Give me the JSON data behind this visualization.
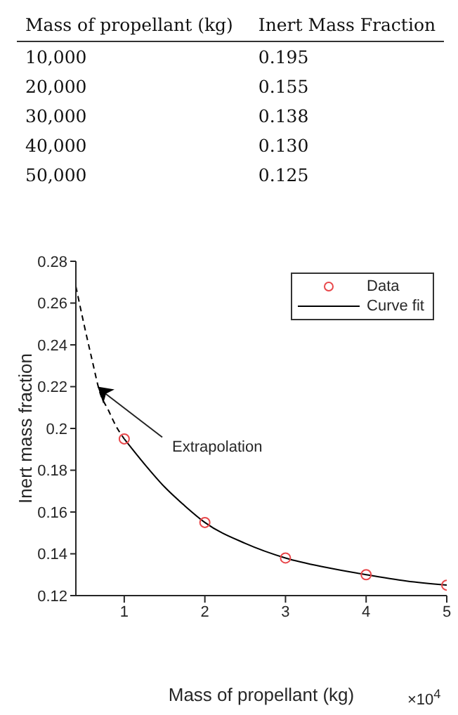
{
  "chart_data": {
    "type": "scatter",
    "xlabel": "Mass of propellant (kg)",
    "ylabel": "Inert mass fraction",
    "xlim": [
      0.4,
      5
    ],
    "xticks": [
      1,
      2,
      3,
      4,
      5
    ],
    "ylim": [
      0.12,
      0.28
    ],
    "yticks": [
      0.12,
      0.14,
      0.16,
      0.18,
      0.2,
      0.22,
      0.24,
      0.26,
      0.28
    ],
    "grid": false,
    "legend": "top right",
    "annotations": [
      "Mass of propellant (kg)",
      "Inert Mass Fraction",
      {
        "text": "Extrapolation",
        "x": 0.67,
        "y": 0.22
      },
      "×10$^{4}$",
      "10,000",
      "20,000",
      "30,000",
      "40,000",
      "50,000",
      "0.195",
      "0.155",
      "0.138",
      "0.130",
      "0.125"
    ],
    "series": [
      {
        "name": "Data",
        "color": "#e8474a",
        "marker": "circle",
        "x": [
          1,
          2,
          3,
          4,
          5
        ],
        "values": [
          0.195,
          0.155,
          0.138,
          0.13,
          0.125
        ]
      },
      {
        "name": "Curve fit",
        "type": "line",
        "color": "#000000",
        "marker": "none",
        "line_style": "solid",
        "x": [
          1,
          1.25,
          1.5,
          1.75,
          2,
          2.5,
          3,
          3.5,
          4,
          4.5,
          5
        ],
        "values": [
          0.195,
          0.183,
          0.172,
          0.163,
          0.155,
          0.145,
          0.138,
          0.1335,
          0.13,
          0.127,
          0.125
        ]
      },
      {
        "type": "line",
        "color": "#000000",
        "marker": "none",
        "line_style": "dashed",
        "x": [
          0.4,
          0.5,
          0.6,
          0.7,
          0.8,
          0.9,
          1
        ],
        "values": [
          0.268,
          0.25,
          0.233,
          0.217,
          0.209,
          0.201,
          0.195
        ]
      }
    ]
  }
}
